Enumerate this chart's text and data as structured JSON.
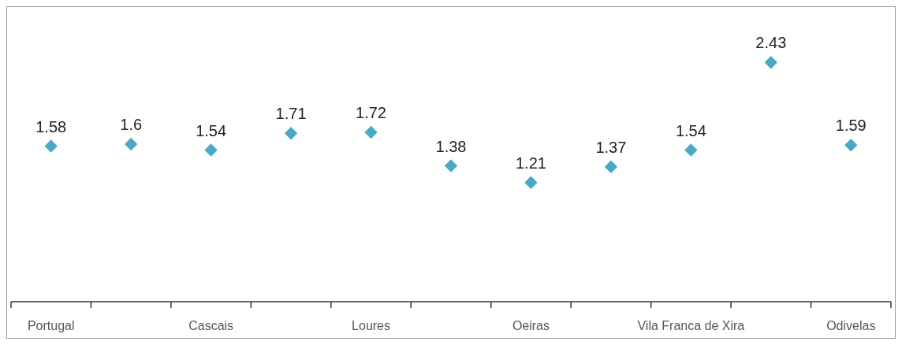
{
  "chart_data": {
    "type": "scatter",
    "categories": [
      "Portugal",
      null,
      "Cascais",
      null,
      "Loures",
      null,
      "Oeiras",
      null,
      "Vila Franca de Xira",
      null,
      "Odivelas"
    ],
    "series": [
      {
        "color": "#4aa8c4",
        "values": [
          1.58,
          1.6,
          1.54,
          1.71,
          1.72,
          1.38,
          1.21,
          1.37,
          1.54,
          2.43,
          1.59
        ]
      }
    ],
    "ylim": [
      0,
      3
    ],
    "tick_labels": "x",
    "data_labels": true,
    "marker": "diamond"
  }
}
